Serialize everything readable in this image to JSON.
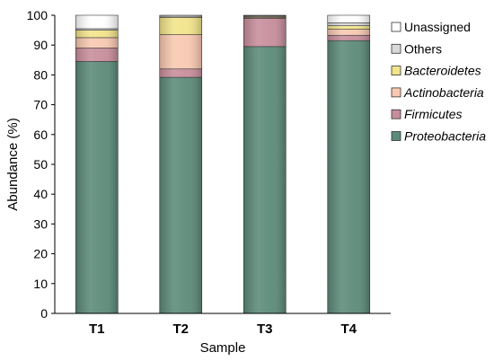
{
  "chart_data": {
    "type": "bar",
    "stacked": true,
    "categories": [
      "T1",
      "T2",
      "T3",
      "T4"
    ],
    "xlabel": "Sample",
    "ylabel": "Abundance (%)",
    "ylim": [
      0,
      100
    ],
    "yticks": [
      0,
      10,
      20,
      30,
      40,
      50,
      60,
      70,
      80,
      90,
      100
    ],
    "grid": false,
    "legend_position": "right",
    "series": [
      {
        "name": "Proteobacteria",
        "italic": true,
        "color": "#5b8a78",
        "values": [
          84.5,
          79.2,
          89.5,
          91.5
        ]
      },
      {
        "name": "Firmicutes",
        "italic": true,
        "color": "#c78d9b",
        "values": [
          4.5,
          2.8,
          9.5,
          1.8
        ]
      },
      {
        "name": "Actinobacteria",
        "italic": true,
        "color": "#f8c8b0",
        "values": [
          3.5,
          11.5,
          0.3,
          2.0
        ]
      },
      {
        "name": "Bacteroidetes",
        "italic": true,
        "color": "#f2e48a",
        "values": [
          2.5,
          5.8,
          0.3,
          1.2
        ]
      },
      {
        "name": "Others",
        "italic": false,
        "color": "#d9d9d9",
        "values": [
          0.5,
          0.4,
          0.2,
          1.0
        ]
      },
      {
        "name": "Unassigned",
        "italic": false,
        "color": "#ffffff",
        "values": [
          4.5,
          0.3,
          0.2,
          2.5
        ]
      }
    ]
  }
}
